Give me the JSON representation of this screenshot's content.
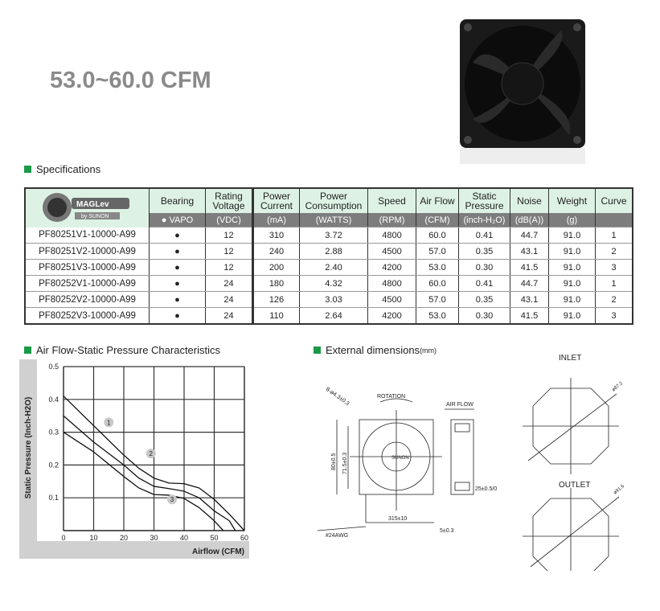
{
  "title": "53.0~60.0 CFM",
  "specs": {
    "section": "Specifications",
    "logo": {
      "brand": "MAGLev",
      "sub": "by SUNON"
    },
    "headers": [
      "Bearing",
      "Rating Voltage",
      "Power Current",
      "Power Consumption",
      "Speed",
      "Air Flow",
      "Static Pressure",
      "Noise",
      "Weight",
      "Curve"
    ],
    "units": [
      "● VAPO",
      "(VDC)",
      "(mA)",
      "(WATTS)",
      "(RPM)",
      "(CFM)",
      "(inch-H₂O)",
      "(dB(A))",
      "(g)",
      ""
    ],
    "rows": [
      [
        "PF80251V1-10000-A99",
        "●",
        "12",
        "310",
        "3.72",
        "4800",
        "60.0",
        "0.41",
        "44.7",
        "91.0",
        "1"
      ],
      [
        "PF80251V2-10000-A99",
        "●",
        "12",
        "240",
        "2.88",
        "4500",
        "57.0",
        "0.35",
        "43.1",
        "91.0",
        "2"
      ],
      [
        "PF80251V3-10000-A99",
        "●",
        "12",
        "200",
        "2.40",
        "4200",
        "53.0",
        "0.30",
        "41.5",
        "91.0",
        "3"
      ],
      [
        "PF80252V1-10000-A99",
        "●",
        "24",
        "180",
        "4.32",
        "4800",
        "60.0",
        "0.41",
        "44.7",
        "91.0",
        "1"
      ],
      [
        "PF80252V2-10000-A99",
        "●",
        "24",
        "126",
        "3.03",
        "4500",
        "57.0",
        "0.35",
        "43.1",
        "91.0",
        "2"
      ],
      [
        "PF80252V3-10000-A99",
        "●",
        "24",
        "110",
        "2.64",
        "4200",
        "53.0",
        "0.30",
        "41.5",
        "91.0",
        "3"
      ]
    ]
  },
  "chart_section": "Air Flow-Static Pressure Characteristics",
  "chart_data": {
    "type": "line",
    "xlabel": "Airflow (CFM)",
    "ylabel": "Static Pressure (Inch-H2O)",
    "xlim": [
      0,
      60
    ],
    "ylim": [
      0,
      0.5
    ],
    "xticks": [
      "0",
      "10",
      "20",
      "30",
      "40",
      "50",
      "60"
    ],
    "yticks": [
      "0.1",
      "0.2",
      "0.3",
      "0.4",
      "0.5"
    ],
    "grid": true,
    "series": [
      {
        "name": "1",
        "label_at": [
          15,
          0.33
        ],
        "points": [
          [
            0,
            0.41
          ],
          [
            10,
            0.32
          ],
          [
            20,
            0.23
          ],
          [
            25,
            0.19
          ],
          [
            30,
            0.16
          ],
          [
            35,
            0.145
          ],
          [
            40,
            0.143
          ],
          [
            45,
            0.13
          ],
          [
            50,
            0.095
          ],
          [
            55,
            0.05
          ],
          [
            60,
            0
          ]
        ]
      },
      {
        "name": "2",
        "label_at": [
          29,
          0.235
        ],
        "points": [
          [
            0,
            0.35
          ],
          [
            10,
            0.27
          ],
          [
            20,
            0.2
          ],
          [
            25,
            0.16
          ],
          [
            30,
            0.135
          ],
          [
            35,
            0.128
          ],
          [
            40,
            0.12
          ],
          [
            45,
            0.1
          ],
          [
            50,
            0.06
          ],
          [
            55,
            0.03
          ],
          [
            57,
            0
          ]
        ]
      },
      {
        "name": "3",
        "label_at": [
          36,
          0.095
        ],
        "points": [
          [
            0,
            0.3
          ],
          [
            10,
            0.24
          ],
          [
            20,
            0.165
          ],
          [
            25,
            0.13
          ],
          [
            30,
            0.11
          ],
          [
            35,
            0.108
          ],
          [
            40,
            0.098
          ],
          [
            45,
            0.07
          ],
          [
            50,
            0.03
          ],
          [
            53,
            0
          ]
        ]
      }
    ]
  },
  "dims": {
    "section": "External dimensions",
    "unit": "(mm)",
    "rotation": "ROTATION",
    "airflow": "AIR FLOW",
    "hole": "8-ø4.3±0.3",
    "h80": "80±0.5",
    "h715": "71.5±0.3",
    "brand": "SUNON",
    "cable": "315±10",
    "strip": "5±0.3",
    "awg": "#24AWG",
    "depth": "25±0.5/0",
    "inlet": "INLET",
    "inlet_d": "ø87.2",
    "outlet": "OUTLET",
    "outlet_d": "ø91.6"
  }
}
